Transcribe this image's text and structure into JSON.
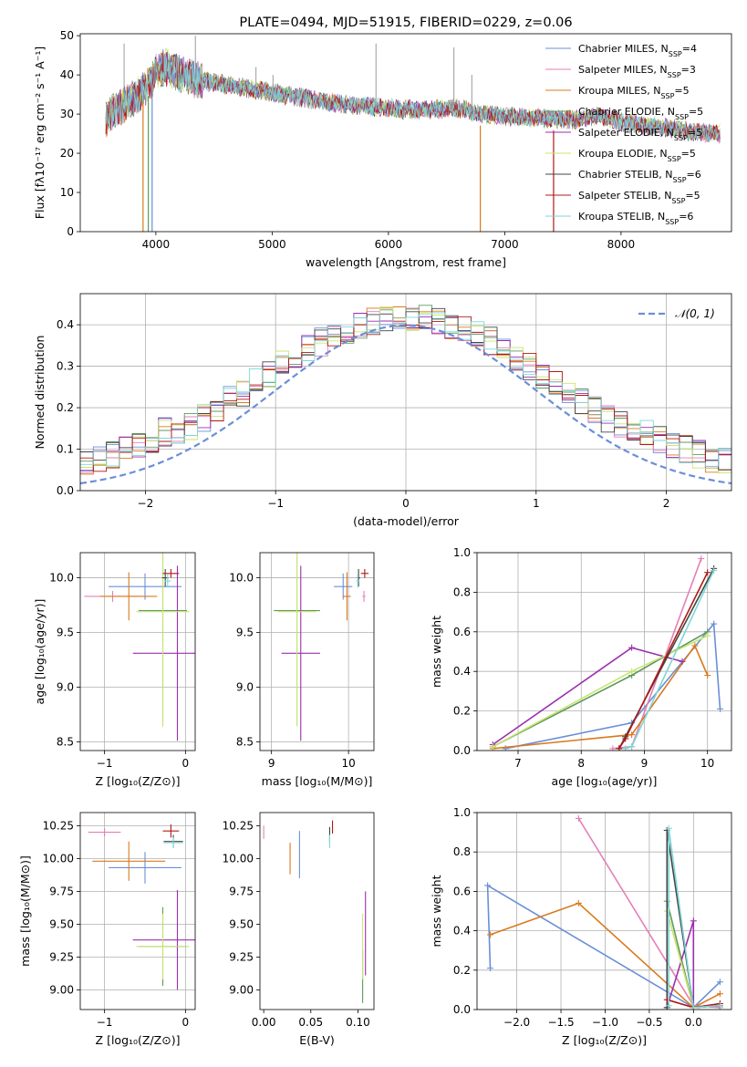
{
  "colors": {
    "chabrier_miles": "#6a8fd8",
    "salpeter_miles": "#e57fb6",
    "kroupa_miles": "#d97a1f",
    "chabrier_elodie": "#5f9a5f",
    "salpeter_elodie": "#9b2fae",
    "kroupa_elodie": "#c8e66e",
    "chabrier_stelib": "#444444",
    "salpeter_stelib": "#b01818",
    "kroupa_stelib": "#7fd6d6",
    "normal": "#6a8fd8",
    "grid": "#b0b0b0"
  },
  "chart_data": [
    {
      "id": "spectrum",
      "type": "line",
      "title": "PLATE=0494, MJD=51915, FIBERID=0229, z=0.06",
      "xlabel": "wavelength [Angstrom, rest frame]",
      "ylabel": "Flux [fλ10⁻¹⁷ erg cm⁻² s⁻¹ A⁻¹]",
      "xlim": [
        3350,
        8950
      ],
      "ylim": [
        0,
        50.5
      ],
      "xticks": [
        4000,
        5000,
        6000,
        7000,
        8000
      ],
      "yticks": [
        0,
        10,
        20,
        30,
        40,
        50
      ],
      "grid": false,
      "legend_position": "top-right",
      "legend": [
        {
          "label": "Chabrier MILES, N",
          "sub": "SSP",
          "val": "=4",
          "color_key": "chabrier_miles"
        },
        {
          "label": "Salpeter MILES, N",
          "sub": "SSP",
          "val": "=3",
          "color_key": "salpeter_miles"
        },
        {
          "label": "Kroupa MILES, N",
          "sub": "SSP",
          "val": "=5",
          "color_key": "kroupa_miles"
        },
        {
          "label": "Chabrier ELODIE, N",
          "sub": "SSP",
          "val": "=5",
          "color_key": "chabrier_elodie"
        },
        {
          "label": "Salpeter ELODIE, N",
          "sub": "SSP",
          "val": "=5",
          "color_key": "salpeter_elodie"
        },
        {
          "label": "Kroupa ELODIE, N",
          "sub": "SSP",
          "val": "=5",
          "color_key": "kroupa_elodie"
        },
        {
          "label": "Chabrier STELIB, N",
          "sub": "SSP",
          "val": "=6",
          "color_key": "chabrier_stelib"
        },
        {
          "label": "Salpeter STELIB, N",
          "sub": "SSP",
          "val": "=5",
          "color_key": "salpeter_stelib"
        },
        {
          "label": "Kroupa STELIB, N",
          "sub": "SSP",
          "val": "=6",
          "color_key": "kroupa_stelib"
        }
      ],
      "continuum": [
        [
          3570,
          29
        ],
        [
          3650,
          31
        ],
        [
          3750,
          33
        ],
        [
          3850,
          35
        ],
        [
          3950,
          38
        ],
        [
          4000,
          41
        ],
        [
          4100,
          42
        ],
        [
          4300,
          39
        ],
        [
          4500,
          38
        ],
        [
          4700,
          37
        ],
        [
          4900,
          36
        ],
        [
          5100,
          35
        ],
        [
          5300,
          34
        ],
        [
          5500,
          33
        ],
        [
          5800,
          32
        ],
        [
          6000,
          31.5
        ],
        [
          6300,
          31
        ],
        [
          6600,
          31.5
        ],
        [
          6800,
          30
        ],
        [
          7000,
          29.5
        ],
        [
          7300,
          29
        ],
        [
          7600,
          28.5
        ],
        [
          7800,
          29.5
        ],
        [
          8000,
          28
        ],
        [
          8200,
          27
        ],
        [
          8400,
          26.5
        ],
        [
          8600,
          25.5
        ],
        [
          8800,
          25
        ]
      ],
      "spikes": [
        [
          3727,
          48
        ],
        [
          4340,
          50
        ],
        [
          4861,
          42
        ],
        [
          5007,
          40
        ],
        [
          5893,
          48
        ],
        [
          6563,
          47
        ],
        [
          6717,
          40
        ]
      ],
      "dips": [
        [
          3890,
          0,
          "kroupa_miles"
        ],
        [
          3935,
          0,
          "chabrier_elodie"
        ],
        [
          3968,
          0,
          "chabrier_miles"
        ],
        [
          6790,
          0,
          "kroupa_miles"
        ],
        [
          7420,
          0,
          "salpeter_stelib"
        ]
      ]
    },
    {
      "id": "residuals",
      "type": "step",
      "xlabel": "(data-model)/error",
      "ylabel": "Normed distribution",
      "xlim": [
        -2.5,
        2.5
      ],
      "ylim": [
        0,
        0.475
      ],
      "xticks": [
        -2,
        -1,
        0,
        1,
        2
      ],
      "yticks": [
        0.0,
        0.1,
        0.2,
        0.3,
        0.4
      ],
      "grid": true,
      "legend_position": "top-right",
      "legend": [
        {
          "label": "𝒩(0, 1)",
          "color_key": "normal",
          "dashed": true
        }
      ],
      "bin_width": 0.1,
      "series_keys": [
        "chabrier_miles",
        "salpeter_miles",
        "kroupa_miles",
        "chabrier_elodie",
        "salpeter_elodie",
        "kroupa_elodie",
        "chabrier_stelib",
        "salpeter_stelib",
        "kroupa_stelib"
      ]
    },
    {
      "id": "age_vs_Z",
      "type": "errorbar",
      "xlabel": "Z [log₁₀(Z/Z⊙)]",
      "ylabel": "age  [log₁₀(age/yr)]",
      "xlim": [
        -1.3,
        0.12
      ],
      "ylim": [
        8.42,
        10.23
      ],
      "xticks": [
        -1,
        0
      ],
      "yticks": [
        8.5,
        9.0,
        9.5,
        10.0
      ],
      "grid": true,
      "points": [
        {
          "k": "chabrier_miles",
          "x": -0.5,
          "xe": 0.45,
          "y": 9.92,
          "ye": 0.12
        },
        {
          "k": "salpeter_miles",
          "x": -0.9,
          "xe": 0.35,
          "y": 9.83,
          "ye": 0.05
        },
        {
          "k": "kroupa_miles",
          "x": -0.7,
          "xe": 0.35,
          "y": 9.83,
          "ye": 0.22
        },
        {
          "k": "chabrier_elodie",
          "x": -0.28,
          "xe": 0.3,
          "y": 9.7,
          "ye": 1.05
        },
        {
          "k": "salpeter_elodie",
          "x": -0.1,
          "xe": 0.55,
          "y": 9.31,
          "ye": 0.8
        },
        {
          "k": "kroupa_elodie",
          "x": -0.28,
          "xe": 0.33,
          "y": 9.69,
          "ye": 1.05
        },
        {
          "k": "chabrier_stelib",
          "x": -0.25,
          "xe": 0.04,
          "y": 10.0,
          "ye": 0.08
        },
        {
          "k": "salpeter_stelib",
          "x": -0.18,
          "xe": 0.1,
          "y": 10.04,
          "ye": 0.04
        },
        {
          "k": "kroupa_stelib",
          "x": -0.22,
          "xe": 0.04,
          "y": 9.97,
          "ye": 0.06
        }
      ]
    },
    {
      "id": "age_vs_mass",
      "type": "errorbar",
      "xlabel": "mass [log₁₀(M/M⊙)]",
      "ylabel": "",
      "xlim": [
        8.85,
        10.33
      ],
      "ylim": [
        8.42,
        10.23
      ],
      "xticks": [
        9,
        10
      ],
      "yticks": [
        8.5,
        9.0,
        9.5,
        10.0
      ],
      "grid": true,
      "points": [
        {
          "k": "chabrier_miles",
          "x": 9.93,
          "xe": 0.12,
          "y": 9.92,
          "ye": 0.12
        },
        {
          "k": "salpeter_miles",
          "x": 10.2,
          "xe": 0.02,
          "y": 9.83,
          "ye": 0.05
        },
        {
          "k": "kroupa_miles",
          "x": 9.98,
          "xe": 0.05,
          "y": 9.83,
          "ye": 0.22
        },
        {
          "k": "chabrier_elodie",
          "x": 9.33,
          "xe": 0.3,
          "y": 9.7,
          "ye": 1.05
        },
        {
          "k": "salpeter_elodie",
          "x": 9.38,
          "xe": 0.25,
          "y": 9.31,
          "ye": 0.8
        },
        {
          "k": "kroupa_elodie",
          "x": 9.33,
          "xe": 0.25,
          "y": 9.69,
          "ye": 1.05
        },
        {
          "k": "chabrier_stelib",
          "x": 10.13,
          "xe": 0.02,
          "y": 10.0,
          "ye": 0.08
        },
        {
          "k": "salpeter_stelib",
          "x": 10.21,
          "xe": 0.05,
          "y": 10.04,
          "ye": 0.04
        },
        {
          "k": "kroupa_stelib",
          "x": 10.12,
          "xe": 0.02,
          "y": 9.97,
          "ye": 0.06
        }
      ]
    },
    {
      "id": "weight_vs_age",
      "type": "line",
      "xlabel": "age  [log₁₀(age/yr)]",
      "ylabel": "mass weight",
      "xlim": [
        6.35,
        10.38
      ],
      "ylim": [
        0,
        1.0
      ],
      "xticks": [
        7,
        8,
        9,
        10
      ],
      "yticks": [
        0.0,
        0.2,
        0.4,
        0.6,
        0.8,
        1.0
      ],
      "grid": true,
      "series": [
        {
          "k": "chabrier_miles",
          "x": [
            6.8,
            8.8,
            10.1,
            10.2
          ],
          "y": [
            0.01,
            0.14,
            0.64,
            0.21
          ]
        },
        {
          "k": "salpeter_miles",
          "x": [
            8.5,
            8.8,
            9.9
          ],
          "y": [
            0.01,
            0.02,
            0.97
          ]
        },
        {
          "k": "kroupa_miles",
          "x": [
            6.6,
            8.8,
            9.8,
            10.0
          ],
          "y": [
            0.01,
            0.08,
            0.53,
            0.38
          ]
        },
        {
          "k": "chabrier_elodie",
          "x": [
            6.6,
            8.8,
            10.0
          ],
          "y": [
            0.02,
            0.38,
            0.6
          ]
        },
        {
          "k": "salpeter_elodie",
          "x": [
            6.6,
            8.8,
            9.6
          ],
          "y": [
            0.03,
            0.52,
            0.45
          ]
        },
        {
          "k": "kroupa_elodie",
          "x": [
            6.6,
            8.8,
            10.0
          ],
          "y": [
            0.02,
            0.4,
            0.58
          ]
        },
        {
          "k": "chabrier_stelib",
          "x": [
            8.6,
            8.7,
            10.1
          ],
          "y": [
            0.01,
            0.07,
            0.92
          ]
        },
        {
          "k": "salpeter_stelib",
          "x": [
            8.6,
            8.7,
            10.0
          ],
          "y": [
            0.01,
            0.06,
            0.9
          ]
        },
        {
          "k": "kroupa_stelib",
          "x": [
            8.7,
            8.8,
            10.1
          ],
          "y": [
            0.01,
            0.02,
            0.91
          ]
        }
      ]
    },
    {
      "id": "mass_vs_Z",
      "type": "errorbar",
      "xlabel": "Z [log₁₀(Z/Z⊙)]",
      "ylabel": "mass [log₁₀(M/M⊙)]",
      "xlim": [
        -1.3,
        0.12
      ],
      "ylim": [
        8.85,
        10.35
      ],
      "xticks": [
        -1,
        0
      ],
      "yticks": [
        9.0,
        9.25,
        9.5,
        9.75,
        10.0,
        10.25
      ],
      "grid": true,
      "points": [
        {
          "k": "chabrier_miles",
          "x": -0.5,
          "xe": 0.45,
          "y": 9.93,
          "ye": 0.12
        },
        {
          "k": "salpeter_miles",
          "x": -1.0,
          "xe": 0.2,
          "y": 10.2,
          "ye": 0.03
        },
        {
          "k": "kroupa_miles",
          "x": -0.7,
          "xe": 0.45,
          "y": 9.98,
          "ye": 0.15
        },
        {
          "k": "chabrier_elodie",
          "x": -0.28,
          "xe": 0.3,
          "y": 9.33,
          "ye": 0.3
        },
        {
          "k": "salpeter_elodie",
          "x": -0.1,
          "xe": 0.55,
          "y": 9.38,
          "ye": 0.38
        },
        {
          "k": "kroupa_elodie",
          "x": -0.28,
          "xe": 0.33,
          "y": 9.33,
          "ye": 0.25
        },
        {
          "k": "chabrier_stelib",
          "x": -0.15,
          "xe": 0.12,
          "y": 10.13,
          "ye": 0.05
        },
        {
          "k": "salpeter_stelib",
          "x": -0.18,
          "xe": 0.1,
          "y": 10.21,
          "ye": 0.05
        },
        {
          "k": "kroupa_stelib",
          "x": -0.15,
          "xe": 0.12,
          "y": 10.12,
          "ye": 0.04
        }
      ]
    },
    {
      "id": "mass_vs_ebv",
      "type": "errorbar",
      "xlabel": "E(B-V)",
      "ylabel": "",
      "xlim": [
        -0.004,
        0.117
      ],
      "ylim": [
        8.85,
        10.35
      ],
      "xticks": [
        0.0,
        0.05,
        0.1
      ],
      "xticklabels": [
        "0.00",
        "0.05",
        "0.10"
      ],
      "yticks": [
        9.0,
        9.25,
        9.5,
        9.75,
        10.0,
        10.25
      ],
      "grid": false,
      "points": [
        {
          "k": "chabrier_miles",
          "x": 0.038,
          "xe": 0,
          "y": 10.03,
          "ye": 0.18
        },
        {
          "k": "salpeter_miles",
          "x": 0.0,
          "xe": 0,
          "y": 10.2,
          "ye": 0.05
        },
        {
          "k": "kroupa_miles",
          "x": 0.028,
          "xe": 0,
          "y": 10.0,
          "ye": 0.12
        },
        {
          "k": "chabrier_elodie",
          "x": 0.105,
          "xe": 0,
          "y": 9.1,
          "ye": 0.2
        },
        {
          "k": "salpeter_elodie",
          "x": 0.108,
          "xe": 0,
          "y": 9.43,
          "ye": 0.32
        },
        {
          "k": "kroupa_elodie",
          "x": 0.105,
          "xe": 0,
          "y": 9.33,
          "ye": 0.25
        },
        {
          "k": "chabrier_stelib",
          "x": 0.07,
          "xe": 0,
          "y": 10.18,
          "ye": 0.06
        },
        {
          "k": "salpeter_stelib",
          "x": 0.073,
          "xe": 0,
          "y": 10.24,
          "ye": 0.05
        },
        {
          "k": "kroupa_stelib",
          "x": 0.07,
          "xe": 0,
          "y": 10.13,
          "ye": 0.05
        }
      ]
    },
    {
      "id": "weight_vs_Z",
      "type": "line",
      "xlabel": "Z [log₁₀(Z/Z⊙)]",
      "ylabel": "mass weight",
      "xlim": [
        -2.45,
        0.43
      ],
      "ylim": [
        0,
        1.0
      ],
      "xticks": [
        -2.0,
        -1.5,
        -1.0,
        -0.5,
        0.0
      ],
      "xticklabels": [
        "−2.0",
        "−1.5",
        "−1.0",
        "−0.5",
        "0.0"
      ],
      "yticks": [
        0.0,
        0.2,
        0.4,
        0.6,
        0.8,
        1.0
      ],
      "grid": true,
      "series": [
        {
          "k": "chabrier_miles",
          "x": [
            -2.3,
            -2.33,
            0.0,
            0.3
          ],
          "y": [
            0.21,
            0.63,
            0.01,
            0.14
          ]
        },
        {
          "k": "salpeter_miles",
          "x": [
            -1.3,
            0.0,
            0.3
          ],
          "y": [
            0.97,
            0.02,
            0.01
          ]
        },
        {
          "k": "kroupa_miles",
          "x": [
            -2.3,
            -1.3,
            0.0,
            0.3
          ],
          "y": [
            0.38,
            0.54,
            0.01,
            0.08
          ]
        },
        {
          "k": "chabrier_elodie",
          "x": [
            -0.3,
            0.0,
            0.3
          ],
          "y": [
            0.55,
            0.01,
            0.02
          ]
        },
        {
          "k": "salpeter_elodie",
          "x": [
            -0.3,
            0.0,
            0.0,
            0.3
          ],
          "y": [
            0.01,
            0.45,
            0.01,
            0.02
          ]
        },
        {
          "k": "kroupa_elodie",
          "x": [
            -0.3,
            0.0,
            0.3
          ],
          "y": [
            0.5,
            0.01,
            0.03
          ]
        },
        {
          "k": "chabrier_stelib",
          "x": [
            -0.3,
            -0.3,
            0.0,
            0.3
          ],
          "y": [
            0.01,
            0.91,
            0.01,
            0.02
          ]
        },
        {
          "k": "salpeter_stelib",
          "x": [
            -0.3,
            0.0,
            0.3
          ],
          "y": [
            0.05,
            0.01,
            0.03
          ]
        },
        {
          "k": "kroupa_stelib",
          "x": [
            -0.28,
            -0.28,
            0.0,
            0.3
          ],
          "y": [
            0.02,
            0.92,
            0.01,
            0.02
          ]
        }
      ]
    }
  ]
}
